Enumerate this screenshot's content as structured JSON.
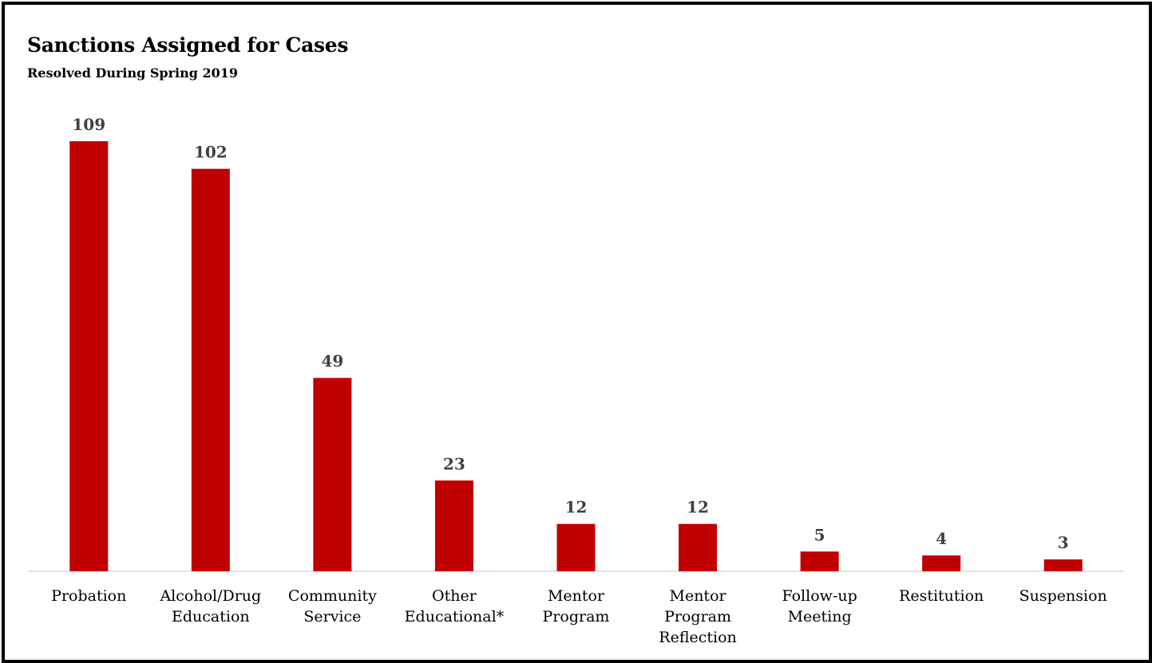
{
  "chart_data": {
    "type": "bar",
    "title": "Sanctions Assigned for Cases",
    "subtitle": "Resolved During Spring 2019",
    "categories": [
      [
        "Probation"
      ],
      [
        "Alcohol/Drug",
        "Education"
      ],
      [
        "Community",
        "Service"
      ],
      [
        "Other",
        "Educational*"
      ],
      [
        "Mentor",
        "Program"
      ],
      [
        "Mentor",
        "Program",
        "Reflection"
      ],
      [
        "Follow-up",
        "Meeting"
      ],
      [
        "Restitution"
      ],
      [
        "Suspension"
      ]
    ],
    "values": [
      109,
      102,
      49,
      23,
      12,
      12,
      5,
      4,
      3
    ],
    "data_labels": [
      "109",
      "102",
      "49",
      "23",
      "12",
      "12",
      "5",
      "4",
      "3"
    ],
    "bar_color": "#C00000",
    "grid": false,
    "legend": "none",
    "ylim": [
      0,
      109
    ]
  }
}
